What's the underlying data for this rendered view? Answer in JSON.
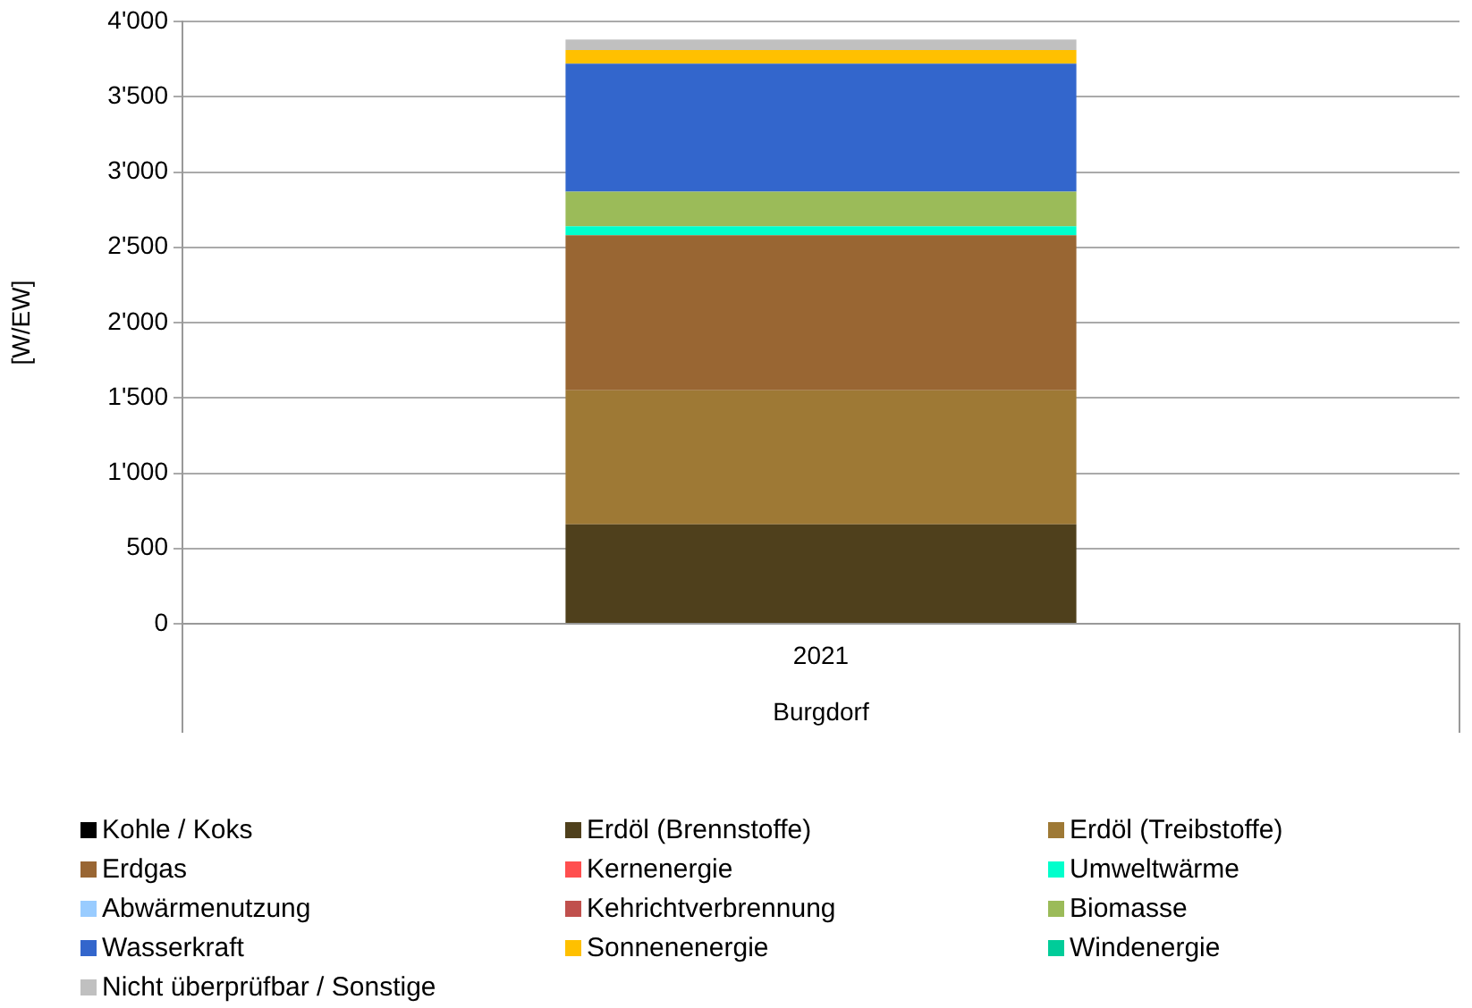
{
  "chart_data": {
    "type": "bar",
    "stacked": true,
    "categories": [
      "2021"
    ],
    "xlabel": "Burgdorf",
    "ylabel": "[W/EW]",
    "ylim": [
      0,
      4000
    ],
    "yticks": [
      0,
      500,
      {
        "value": 1000,
        "label": "1'000"
      },
      {
        "value": 1500,
        "label": "1'500"
      },
      {
        "value": 2000,
        "label": "2'000"
      },
      {
        "value": 2500,
        "label": "2'500"
      },
      {
        "value": 3000,
        "label": "3'000"
      },
      {
        "value": 3500,
        "label": "3'500"
      },
      {
        "value": 4000,
        "label": "4'000"
      }
    ],
    "grid": "y",
    "legend": "bottom",
    "series": [
      {
        "name": "Kohle / Koks",
        "color": "#000000",
        "values": [
          0
        ]
      },
      {
        "name": "Erdöl (Brennstoffe)",
        "color": "#4f401c",
        "values": [
          660
        ]
      },
      {
        "name": "Erdöl (Treibstoffe)",
        "color": "#9e7935",
        "values": [
          890
        ]
      },
      {
        "name": "Erdgas",
        "color": "#996633",
        "values": [
          1030
        ]
      },
      {
        "name": "Kernenergie",
        "color": "#ff4f4f",
        "values": [
          0
        ]
      },
      {
        "name": "Umweltwärme",
        "color": "#00ffcc",
        "values": [
          60
        ]
      },
      {
        "name": "Abwärmenutzung",
        "color": "#99ccff",
        "values": [
          0
        ]
      },
      {
        "name": "Kehrichtverbrennung",
        "color": "#c0504d",
        "values": [
          0
        ]
      },
      {
        "name": "Biomasse",
        "color": "#9bbb59",
        "values": [
          230
        ]
      },
      {
        "name": "Wasserkraft",
        "color": "#3366cc",
        "values": [
          850
        ]
      },
      {
        "name": "Sonnenenergie",
        "color": "#ffc000",
        "values": [
          90
        ]
      },
      {
        "name": "Windenergie",
        "color": "#00cc99",
        "values": [
          0
        ]
      },
      {
        "name": "Nicht überprüfbar / Sonstige",
        "color": "#c0c0c0",
        "values": [
          70
        ]
      }
    ]
  }
}
